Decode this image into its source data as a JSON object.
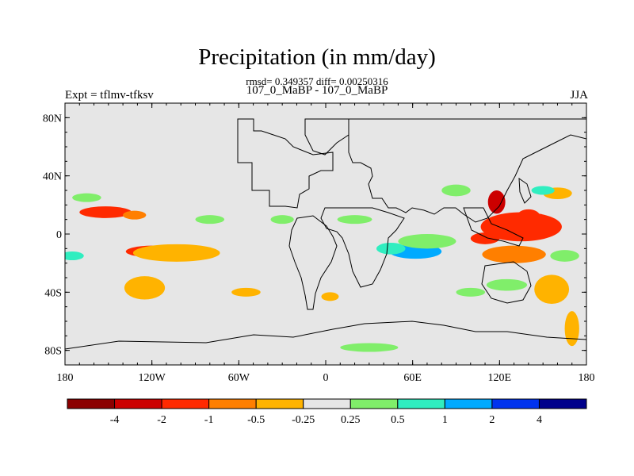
{
  "header": {
    "title": "Precipitation (in mm/day)",
    "stats": "rmsd= 0.349357 diff= 0.00250316",
    "cases": "107_0_MaBP - 107_0_MaBP",
    "expt": "Expt = tflmv-tfksv",
    "season": "JJA"
  },
  "axes": {
    "y_ticks": [
      {
        "value": 80,
        "label": "80N"
      },
      {
        "value": 40,
        "label": "40N"
      },
      {
        "value": 0,
        "label": "0"
      },
      {
        "value": -40,
        "label": "40S"
      },
      {
        "value": -80,
        "label": "80S"
      }
    ],
    "x_ticks": [
      {
        "value": -180,
        "label": "180"
      },
      {
        "value": -120,
        "label": "120W"
      },
      {
        "value": -60,
        "label": "60W"
      },
      {
        "value": 0,
        "label": "0"
      },
      {
        "value": 60,
        "label": "60E"
      },
      {
        "value": 120,
        "label": "120E"
      },
      {
        "value": 180,
        "label": "180"
      }
    ],
    "lon_range": [
      -180,
      180
    ],
    "lat_range": [
      -90,
      90
    ]
  },
  "colorbar": {
    "colors": [
      "#8b0000",
      "#cc0000",
      "#ff2a00",
      "#ff7f00",
      "#ffb300",
      "#e6e6e6",
      "#80ee6a",
      "#30eec0",
      "#00aaff",
      "#0033ee",
      "#00008b"
    ],
    "labels": [
      "-4",
      "-2",
      "-1",
      "-0.5",
      "-0.25",
      "0.25",
      "0.5",
      "1",
      "2",
      "4"
    ]
  },
  "chart_data": {
    "type": "heatmap",
    "title": "Precipitation (in mm/day)",
    "levels": [
      -4,
      -2,
      -1,
      -0.5,
      -0.25,
      0.25,
      0.5,
      1,
      2,
      4
    ],
    "background_bin": "-0.25 to 0.25",
    "regions": [
      {
        "lon": 135,
        "lat": 5,
        "rlon": 28,
        "rlat": 10,
        "value": -1.5
      },
      {
        "lon": 118,
        "lat": 22,
        "rlon": 6,
        "rlat": 8,
        "value": -2.5
      },
      {
        "lon": 140,
        "lat": 12,
        "rlon": 8,
        "rlat": 5,
        "value": -1.2
      },
      {
        "lon": 110,
        "lat": -3,
        "rlon": 10,
        "rlat": 4,
        "value": -1.2
      },
      {
        "lon": -152,
        "lat": 15,
        "rlon": 18,
        "rlat": 4,
        "value": -1.2
      },
      {
        "lon": -132,
        "lat": 13,
        "rlon": 8,
        "rlat": 3,
        "value": -0.7
      },
      {
        "lon": -120,
        "lat": -12,
        "rlon": 18,
        "rlat": 4,
        "value": -1.2
      },
      {
        "lon": -103,
        "lat": -13,
        "rlon": 30,
        "rlat": 6,
        "value": -0.4
      },
      {
        "lon": 130,
        "lat": -14,
        "rlon": 22,
        "rlat": 6,
        "value": -0.7
      },
      {
        "lon": 156,
        "lat": -38,
        "rlon": 12,
        "rlat": 10,
        "value": -0.4
      },
      {
        "lon": -125,
        "lat": -37,
        "rlon": 14,
        "rlat": 8,
        "value": -0.4
      },
      {
        "lon": -55,
        "lat": -40,
        "rlon": 10,
        "rlat": 3,
        "value": -0.4
      },
      {
        "lon": 3,
        "lat": -43,
        "rlon": 6,
        "rlat": 3,
        "value": -0.4
      },
      {
        "lon": 170,
        "lat": -65,
        "rlon": 5,
        "rlat": 12,
        "value": -0.4
      },
      {
        "lon": 160,
        "lat": 28,
        "rlon": 10,
        "rlat": 4,
        "value": -0.4
      },
      {
        "lon": 62,
        "lat": -12,
        "rlon": 18,
        "rlat": 5,
        "value": 1.5
      },
      {
        "lon": 45,
        "lat": -10,
        "rlon": 10,
        "rlat": 4,
        "value": 0.8
      },
      {
        "lon": 70,
        "lat": -5,
        "rlon": 20,
        "rlat": 5,
        "value": 0.4
      },
      {
        "lon": 90,
        "lat": 30,
        "rlon": 10,
        "rlat": 4,
        "value": 0.4
      },
      {
        "lon": 150,
        "lat": 30,
        "rlon": 8,
        "rlat": 3,
        "value": 0.7
      },
      {
        "lon": -175,
        "lat": -15,
        "rlon": 8,
        "rlat": 3,
        "value": 0.7
      },
      {
        "lon": -165,
        "lat": 25,
        "rlon": 10,
        "rlat": 3,
        "value": 0.4
      },
      {
        "lon": 165,
        "lat": -15,
        "rlon": 10,
        "rlat": 4,
        "value": 0.4
      },
      {
        "lon": 125,
        "lat": -35,
        "rlon": 14,
        "rlat": 4,
        "value": 0.4
      },
      {
        "lon": 100,
        "lat": -40,
        "rlon": 10,
        "rlat": 3,
        "value": 0.4
      },
      {
        "lon": 30,
        "lat": -78,
        "rlon": 20,
        "rlat": 3,
        "value": 0.4
      },
      {
        "lon": -80,
        "lat": 10,
        "rlon": 10,
        "rlat": 3,
        "value": 0.4
      },
      {
        "lon": -30,
        "lat": 10,
        "rlon": 8,
        "rlat": 3,
        "value": 0.4
      },
      {
        "lon": 20,
        "lat": 10,
        "rlon": 12,
        "rlat": 3,
        "value": 0.4
      }
    ]
  }
}
